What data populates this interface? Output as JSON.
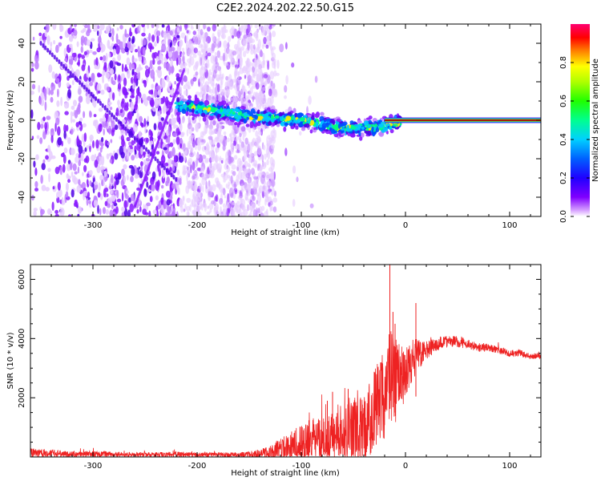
{
  "figure": {
    "title": "C2E2.2024.202.22.50.G15"
  },
  "chart_data": [
    {
      "type": "heatmap",
      "xlabel": "Height of straight line (km)",
      "ylabel": "Frequency (Hz)",
      "xlim": [
        -360,
        130
      ],
      "ylim": [
        -50,
        50
      ],
      "xticks": [
        -300,
        -200,
        -100,
        0,
        100
      ],
      "yticks": [
        -40,
        -20,
        0,
        20,
        40
      ],
      "colorbar": {
        "label": "Normalized spectral amplitude",
        "range": [
          0,
          1
        ],
        "ticks": [
          "0.0",
          "0.2",
          "0.4",
          "0.6",
          "0.8"
        ]
      },
      "features": {
        "noise_region_x": [
          -360,
          -125
        ],
        "noise_dense_x": [
          -360,
          -215
        ],
        "signal_band_start_x": -220,
        "coherent_line_start_x": -20,
        "coherent_line_freq": 0,
        "signal_center_freq_at": [
          [
            -220,
            8
          ],
          [
            -150,
            2
          ],
          [
            -100,
            0
          ],
          [
            -60,
            -4
          ],
          [
            -30,
            -4
          ],
          [
            0,
            0
          ],
          [
            130,
            0
          ]
        ]
      },
      "colors": [
        "#e6ccff",
        "#c080ff",
        "#8a1aff",
        "#5000e6",
        "#0050ff",
        "#00c8ff",
        "#00ff80",
        "#ffee00",
        "#ff6600",
        "#ff0000"
      ]
    },
    {
      "type": "line",
      "xlabel": "Height of straight line (km)",
      "ylabel": "SNR (10 * v/v)",
      "xlim": [
        -360,
        130
      ],
      "ylim": [
        0,
        6500
      ],
      "xticks": [
        -300,
        -200,
        -100,
        0,
        100
      ],
      "yticks": [
        2000,
        4000,
        6000
      ],
      "series": [
        {
          "color": "#ee2222",
          "x": [
            -360,
            -340,
            -320,
            -300,
            -280,
            -260,
            -240,
            -220,
            -200,
            -180,
            -160,
            -140,
            -130,
            -120,
            -110,
            -100,
            -90,
            -80,
            -70,
            -60,
            -50,
            -40,
            -30,
            -25,
            -20,
            -15,
            -12,
            -10,
            -5,
            0,
            10,
            20,
            30,
            40,
            50,
            60,
            70,
            80,
            90,
            100,
            110,
            120,
            130
          ],
          "values": [
            150,
            120,
            100,
            100,
            90,
            80,
            80,
            90,
            70,
            80,
            70,
            100,
            150,
            250,
            350,
            400,
            500,
            550,
            600,
            700,
            900,
            1000,
            1500,
            1900,
            1900,
            2700,
            2800,
            2500,
            2700,
            2700,
            3400,
            3600,
            3800,
            3900,
            3900,
            3800,
            3700,
            3700,
            3600,
            3500,
            3500,
            3400,
            3400
          ],
          "spread": [
            150,
            120,
            100,
            100,
            90,
            80,
            80,
            90,
            70,
            80,
            80,
            150,
            250,
            400,
            600,
            700,
            800,
            800,
            800,
            900,
            1100,
            1200,
            1400,
            1500,
            1600,
            1600,
            1500,
            1400,
            1200,
            1000,
            600,
            300,
            250,
            200,
            200,
            150,
            150,
            150,
            120,
            120,
            120,
            100,
            100
          ],
          "spikes": [
            [
              -15,
              6500
            ],
            [
              -12,
              4900
            ],
            [
              -10,
              4500
            ],
            [
              10,
              5200
            ],
            [
              -55,
              2300
            ],
            [
              -70,
              2200
            ],
            [
              -75,
              1900
            ]
          ]
        }
      ]
    }
  ]
}
